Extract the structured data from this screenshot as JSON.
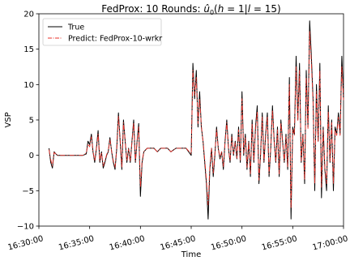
{
  "chart_data": {
    "type": "line",
    "title": "FedProx: 10 Rounds: û₀(h = 1|l = 15)",
    "xlabel": "Time",
    "ylabel": "VSP",
    "xlim": [
      "16:30:00",
      "17:00:00"
    ],
    "ylim": [
      -10,
      20
    ],
    "x_ticks": [
      "16:30:00",
      "16:35:00",
      "16:40:00",
      "16:45:00",
      "16:50:00",
      "16:55:00",
      "17:00:00"
    ],
    "y_ticks": [
      -10,
      -5,
      0,
      5,
      10,
      15,
      20
    ],
    "grid": false,
    "legend_position": "top-left",
    "colors": {
      "true": "#000000",
      "predict": "#e8312a"
    },
    "series": [
      {
        "name": "True",
        "style": "solid",
        "x": [
          "16:31:00",
          "16:31:10",
          "16:31:20",
          "16:31:30",
          "16:31:40",
          "16:31:50",
          "16:32:00",
          "16:32:30",
          "16:33:00",
          "16:33:30",
          "16:34:00",
          "16:34:20",
          "16:34:40",
          "16:34:50",
          "16:35:00",
          "16:35:10",
          "16:35:20",
          "16:35:30",
          "16:35:40",
          "16:35:50",
          "16:36:00",
          "16:36:10",
          "16:36:20",
          "16:36:30",
          "16:36:40",
          "16:36:50",
          "16:37:00",
          "16:37:10",
          "16:37:20",
          "16:37:30",
          "16:37:40",
          "16:37:50",
          "16:38:00",
          "16:38:10",
          "16:38:20",
          "16:38:30",
          "16:38:40",
          "16:38:50",
          "16:39:00",
          "16:39:10",
          "16:39:20",
          "16:39:30",
          "16:39:40",
          "16:39:50",
          "16:40:00",
          "16:40:10",
          "16:40:20",
          "16:40:40",
          "16:41:00",
          "16:41:20",
          "16:41:40",
          "16:42:00",
          "16:42:20",
          "16:42:40",
          "16:43:00",
          "16:43:30",
          "16:44:00",
          "16:44:30",
          "16:45:00",
          "16:45:10",
          "16:45:20",
          "16:45:30",
          "16:45:40",
          "16:45:50",
          "16:46:00",
          "16:46:10",
          "16:46:20",
          "16:46:30",
          "16:46:40",
          "16:46:50",
          "16:47:00",
          "16:47:10",
          "16:47:20",
          "16:47:30",
          "16:47:40",
          "16:47:50",
          "16:48:00",
          "16:48:10",
          "16:48:20",
          "16:48:30",
          "16:48:40",
          "16:48:50",
          "16:49:00",
          "16:49:10",
          "16:49:20",
          "16:49:30",
          "16:49:40",
          "16:49:50",
          "16:50:00",
          "16:50:10",
          "16:50:20",
          "16:50:30",
          "16:50:40",
          "16:50:50",
          "16:51:00",
          "16:51:10",
          "16:51:20",
          "16:51:30",
          "16:51:40",
          "16:51:50",
          "16:52:00",
          "16:52:10",
          "16:52:20",
          "16:52:30",
          "16:52:40",
          "16:52:50",
          "16:53:00",
          "16:53:10",
          "16:53:20",
          "16:53:30",
          "16:53:40",
          "16:53:50",
          "16:54:00",
          "16:54:10",
          "16:54:20",
          "16:54:30",
          "16:54:40",
          "16:54:50",
          "16:55:00",
          "16:55:10",
          "16:55:20",
          "16:55:30",
          "16:55:40",
          "16:55:50",
          "16:56:00",
          "16:56:10",
          "16:56:20",
          "16:56:30",
          "16:56:40",
          "16:56:50",
          "16:57:00",
          "16:57:10",
          "16:57:20",
          "16:57:30",
          "16:57:40",
          "16:57:50",
          "16:58:00",
          "16:58:10",
          "16:58:20",
          "16:58:30",
          "16:58:40",
          "16:58:50",
          "16:59:00",
          "16:59:10",
          "16:59:20",
          "16:59:30",
          "16:59:40",
          "16:59:50",
          "17:00:00"
        ],
        "y": [
          1,
          -1,
          -1.8,
          0.5,
          0.2,
          0,
          0,
          0,
          0,
          0,
          0,
          0,
          0.2,
          2,
          1.5,
          3,
          0.5,
          -1,
          1,
          3.5,
          -1,
          0.5,
          -1.8,
          -1,
          0,
          0.5,
          2.5,
          0.5,
          -1,
          -2,
          1,
          6,
          2,
          -2,
          5,
          2,
          -1,
          1,
          -1,
          2,
          5,
          -1,
          2,
          4.5,
          -5.8,
          -1,
          0.5,
          1,
          1,
          1,
          0.5,
          1,
          1,
          1,
          0.5,
          1,
          1,
          1,
          0,
          13,
          8,
          12,
          4,
          9,
          4,
          2,
          -1,
          -4,
          -9,
          -2,
          1,
          -3,
          0,
          4,
          1,
          -0.5,
          0.5,
          -2,
          2,
          5,
          1,
          -1,
          3,
          0,
          2,
          -0.5,
          4,
          -1,
          9,
          0,
          3,
          -2,
          2,
          -3,
          5,
          -1,
          4,
          7,
          -4,
          0,
          6,
          -1,
          3,
          6,
          -3,
          1,
          7,
          2,
          -1,
          4,
          -3,
          5,
          2,
          -1,
          3,
          -2,
          11,
          -9,
          4,
          3,
          14,
          5,
          13,
          -1,
          3,
          -4,
          12,
          4,
          19,
          14,
          8,
          -5,
          10,
          2,
          13,
          -6,
          4,
          -2,
          -5,
          7,
          -1,
          5,
          -5,
          4,
          3,
          6,
          3,
          14,
          8
        ]
      },
      {
        "name": "Predict: FedProx-10-wrkr",
        "style": "dashdot",
        "x": [
          "16:31:00",
          "16:31:10",
          "16:31:20",
          "16:31:30",
          "16:31:40",
          "16:31:50",
          "16:32:00",
          "16:32:30",
          "16:33:00",
          "16:33:30",
          "16:34:00",
          "16:34:20",
          "16:34:40",
          "16:34:50",
          "16:35:00",
          "16:35:10",
          "16:35:20",
          "16:35:30",
          "16:35:40",
          "16:35:50",
          "16:36:00",
          "16:36:10",
          "16:36:20",
          "16:36:30",
          "16:36:40",
          "16:36:50",
          "16:37:00",
          "16:37:10",
          "16:37:20",
          "16:37:30",
          "16:37:40",
          "16:37:50",
          "16:38:00",
          "16:38:10",
          "16:38:20",
          "16:38:30",
          "16:38:40",
          "16:38:50",
          "16:39:00",
          "16:39:10",
          "16:39:20",
          "16:39:30",
          "16:39:40",
          "16:39:50",
          "16:40:00",
          "16:40:10",
          "16:40:20",
          "16:40:40",
          "16:41:00",
          "16:41:20",
          "16:41:40",
          "16:42:00",
          "16:42:20",
          "16:42:40",
          "16:43:00",
          "16:43:30",
          "16:44:00",
          "16:44:30",
          "16:45:00",
          "16:45:10",
          "16:45:20",
          "16:45:30",
          "16:45:40",
          "16:45:50",
          "16:46:00",
          "16:46:10",
          "16:46:20",
          "16:46:30",
          "16:46:40",
          "16:46:50",
          "16:47:00",
          "16:47:10",
          "16:47:20",
          "16:47:30",
          "16:47:40",
          "16:47:50",
          "16:48:00",
          "16:48:10",
          "16:48:20",
          "16:48:30",
          "16:48:40",
          "16:48:50",
          "16:49:00",
          "16:49:10",
          "16:49:20",
          "16:49:30",
          "16:49:40",
          "16:49:50",
          "16:50:00",
          "16:50:10",
          "16:50:20",
          "16:50:30",
          "16:50:40",
          "16:50:50",
          "16:51:00",
          "16:51:10",
          "16:51:20",
          "16:51:30",
          "16:51:40",
          "16:51:50",
          "16:52:00",
          "16:52:10",
          "16:52:20",
          "16:52:30",
          "16:52:40",
          "16:52:50",
          "16:53:00",
          "16:53:10",
          "16:53:20",
          "16:53:30",
          "16:53:40",
          "16:53:50",
          "16:54:00",
          "16:54:10",
          "16:54:20",
          "16:54:30",
          "16:54:40",
          "16:54:50",
          "16:55:00",
          "16:55:10",
          "16:55:20",
          "16:55:30",
          "16:55:40",
          "16:55:50",
          "16:56:00",
          "16:56:10",
          "16:56:20",
          "16:56:30",
          "16:56:40",
          "16:56:50",
          "16:57:00",
          "16:57:10",
          "16:57:20",
          "16:57:30",
          "16:57:40",
          "16:57:50",
          "16:58:00",
          "16:58:10",
          "16:58:20",
          "16:58:30",
          "16:58:40",
          "16:58:50",
          "16:59:00",
          "16:59:10",
          "16:59:20",
          "16:59:30",
          "16:59:40",
          "16:59:50",
          "17:00:00"
        ],
        "y": [
          0.8,
          -0.6,
          -1.5,
          0.4,
          0.2,
          0,
          0,
          0,
          0,
          0,
          0,
          0,
          0.3,
          1.6,
          1.2,
          2.6,
          0.6,
          -0.8,
          0.9,
          3,
          -0.8,
          0.4,
          -1.5,
          -0.8,
          0.1,
          0.6,
          2.2,
          0.6,
          -0.8,
          -1.7,
          0.9,
          5.5,
          2.2,
          -1.7,
          4.6,
          2.1,
          -0.8,
          0.9,
          -0.8,
          1.8,
          4.6,
          -0.8,
          1.8,
          4,
          -4.5,
          -0.8,
          0.5,
          1,
          1,
          1,
          0.5,
          1,
          1,
          1,
          0.5,
          1,
          1,
          1,
          0.2,
          12,
          8.5,
          11,
          4.5,
          8,
          4.2,
          2,
          -0.6,
          -3.5,
          -7,
          -1.6,
          1,
          -2.5,
          0.2,
          3.6,
          1,
          -0.3,
          0.5,
          -1.6,
          1.8,
          4.6,
          1,
          -0.8,
          2.6,
          0.2,
          1.8,
          -0.4,
          3.6,
          -0.8,
          8,
          0.3,
          2.6,
          -1.7,
          1.8,
          -2.6,
          4.5,
          -0.8,
          3.6,
          6.2,
          -3.5,
          0.2,
          5.4,
          -0.8,
          2.6,
          5.5,
          -2.6,
          1,
          6.4,
          1.8,
          -0.8,
          3.6,
          -2.6,
          4.6,
          1.8,
          -0.8,
          2.6,
          -1.6,
          10,
          -7.5,
          3.6,
          2.8,
          12.5,
          4.8,
          12,
          -0.8,
          2.8,
          -3.5,
          11,
          3.8,
          17.5,
          13,
          7.5,
          -4,
          9,
          2,
          12,
          -4.5,
          3.6,
          -1.7,
          -4,
          6.2,
          -0.8,
          4.6,
          -4,
          3.6,
          2.8,
          5.4,
          2.8,
          12.6,
          7.8
        ]
      }
    ]
  }
}
